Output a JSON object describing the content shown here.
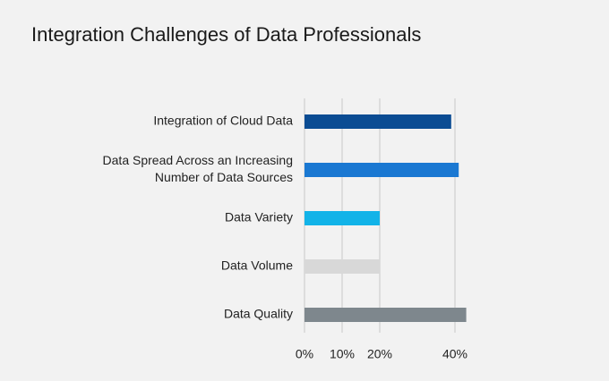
{
  "chart_data": {
    "type": "barh",
    "title": "Integration Challenges of Data Professionals",
    "categories": [
      [
        "Integration of Cloud Data"
      ],
      [
        "Data Spread Across an Increasing",
        "Number of Data Sources"
      ],
      [
        "Data Variety"
      ],
      [
        "Data Volume"
      ],
      [
        "Data Quality"
      ]
    ],
    "values": [
      39,
      41,
      20,
      20,
      43
    ],
    "colors": [
      "#0b4c93",
      "#1a78d2",
      "#12b3e8",
      "#d8d8d8",
      "#7e878d"
    ],
    "xlim": [
      0,
      45
    ],
    "xticks": [
      {
        "value": 0,
        "label": "0%"
      },
      {
        "value": 10,
        "label": "10%"
      },
      {
        "value": 20,
        "label": "20%"
      },
      {
        "value": 40,
        "label": "40%"
      }
    ],
    "grid": true
  }
}
